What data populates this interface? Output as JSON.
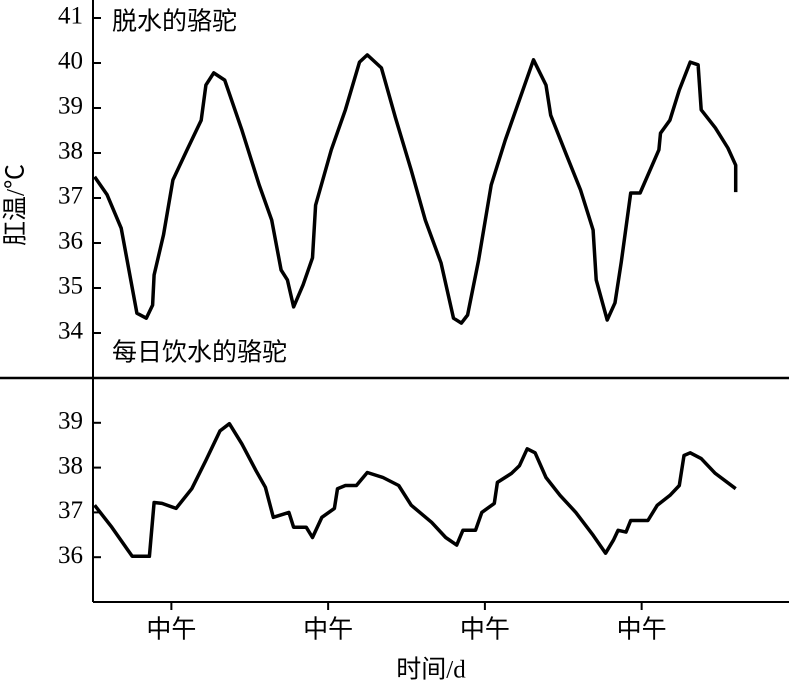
{
  "chart_data": [
    {
      "type": "line",
      "title": "脱水的骆驼",
      "ylabel": "肛温/℃",
      "color": "#000000",
      "xlim": [
        0,
        4.44
      ],
      "ylim": [
        33.0,
        41.4
      ],
      "yticks": [
        34,
        35,
        36,
        37,
        38,
        39,
        40,
        41
      ],
      "x": [
        0.01,
        0.09,
        0.18,
        0.28,
        0.34,
        0.38,
        0.39,
        0.45,
        0.51,
        0.6,
        0.69,
        0.72,
        0.77,
        0.84,
        0.95,
        1.06,
        1.14,
        1.2,
        1.24,
        1.28,
        1.34,
        1.4,
        1.42,
        1.52,
        1.61,
        1.7,
        1.75,
        1.84,
        1.93,
        2.03,
        2.12,
        2.22,
        2.3,
        2.35,
        2.39,
        2.46,
        2.54,
        2.63,
        2.72,
        2.81,
        2.89,
        2.92,
        3.02,
        3.11,
        3.19,
        3.21,
        3.28,
        3.33,
        3.37,
        3.43,
        3.49,
        3.61,
        3.62,
        3.68,
        3.74,
        3.81,
        3.86,
        3.88,
        3.97,
        4.05,
        4.1,
        4.1
      ],
      "values": [
        37.47,
        37.07,
        36.33,
        34.44,
        34.33,
        34.62,
        35.29,
        36.18,
        37.4,
        38.07,
        38.73,
        39.51,
        39.78,
        39.62,
        38.51,
        37.29,
        36.51,
        35.4,
        35.18,
        34.58,
        35.07,
        35.67,
        36.84,
        38.07,
        38.96,
        40.02,
        40.18,
        39.89,
        38.78,
        37.62,
        36.51,
        35.56,
        34.33,
        34.22,
        34.4,
        35.62,
        37.29,
        38.29,
        39.18,
        40.07,
        39.51,
        38.84,
        37.96,
        37.18,
        36.29,
        35.18,
        34.29,
        34.67,
        35.58,
        37.11,
        37.11,
        38.07,
        38.44,
        38.73,
        39.4,
        40.02,
        39.96,
        38.96,
        38.56,
        38.11,
        37.73,
        37.13
      ]
    },
    {
      "type": "line",
      "title": "每日饮水的骆驼",
      "xlabel": "时间/d",
      "color": "#000000",
      "xlim": [
        0,
        4.44
      ],
      "ylim": [
        35,
        40
      ],
      "yticks": [
        36,
        37,
        38,
        39
      ],
      "xticks": [
        {
          "value": 0.5,
          "label": "中午"
        },
        {
          "value": 1.5,
          "label": "中午"
        },
        {
          "value": 2.5,
          "label": "中午"
        },
        {
          "value": 3.5,
          "label": "中午"
        }
      ],
      "x": [
        0.01,
        0.12,
        0.25,
        0.36,
        0.39,
        0.44,
        0.53,
        0.63,
        0.72,
        0.81,
        0.87,
        0.95,
        1.04,
        1.1,
        1.15,
        1.25,
        1.28,
        1.36,
        1.4,
        1.46,
        1.54,
        1.56,
        1.61,
        1.68,
        1.75,
        1.85,
        1.95,
        2.03,
        2.16,
        2.25,
        2.32,
        2.36,
        2.44,
        2.48,
        2.56,
        2.58,
        2.67,
        2.72,
        2.77,
        2.82,
        2.89,
        2.98,
        3.08,
        3.19,
        3.27,
        3.32,
        3.35,
        3.4,
        3.43,
        3.54,
        3.6,
        3.68,
        3.74,
        3.77,
        3.81,
        3.88,
        3.97,
        4.1
      ],
      "values": [
        37.16,
        36.67,
        36.02,
        36.02,
        37.22,
        37.2,
        37.09,
        37.53,
        38.16,
        38.82,
        38.98,
        38.53,
        37.93,
        37.56,
        36.89,
        37.0,
        36.67,
        36.67,
        36.44,
        36.89,
        37.09,
        37.53,
        37.6,
        37.6,
        37.89,
        37.78,
        37.6,
        37.16,
        36.78,
        36.44,
        36.27,
        36.6,
        36.6,
        37.0,
        37.2,
        37.67,
        37.87,
        38.04,
        38.42,
        38.33,
        37.78,
        37.38,
        37.0,
        36.49,
        36.09,
        36.38,
        36.6,
        36.56,
        36.82,
        36.82,
        37.16,
        37.38,
        37.6,
        38.27,
        38.33,
        38.2,
        37.87,
        37.53
      ]
    }
  ]
}
